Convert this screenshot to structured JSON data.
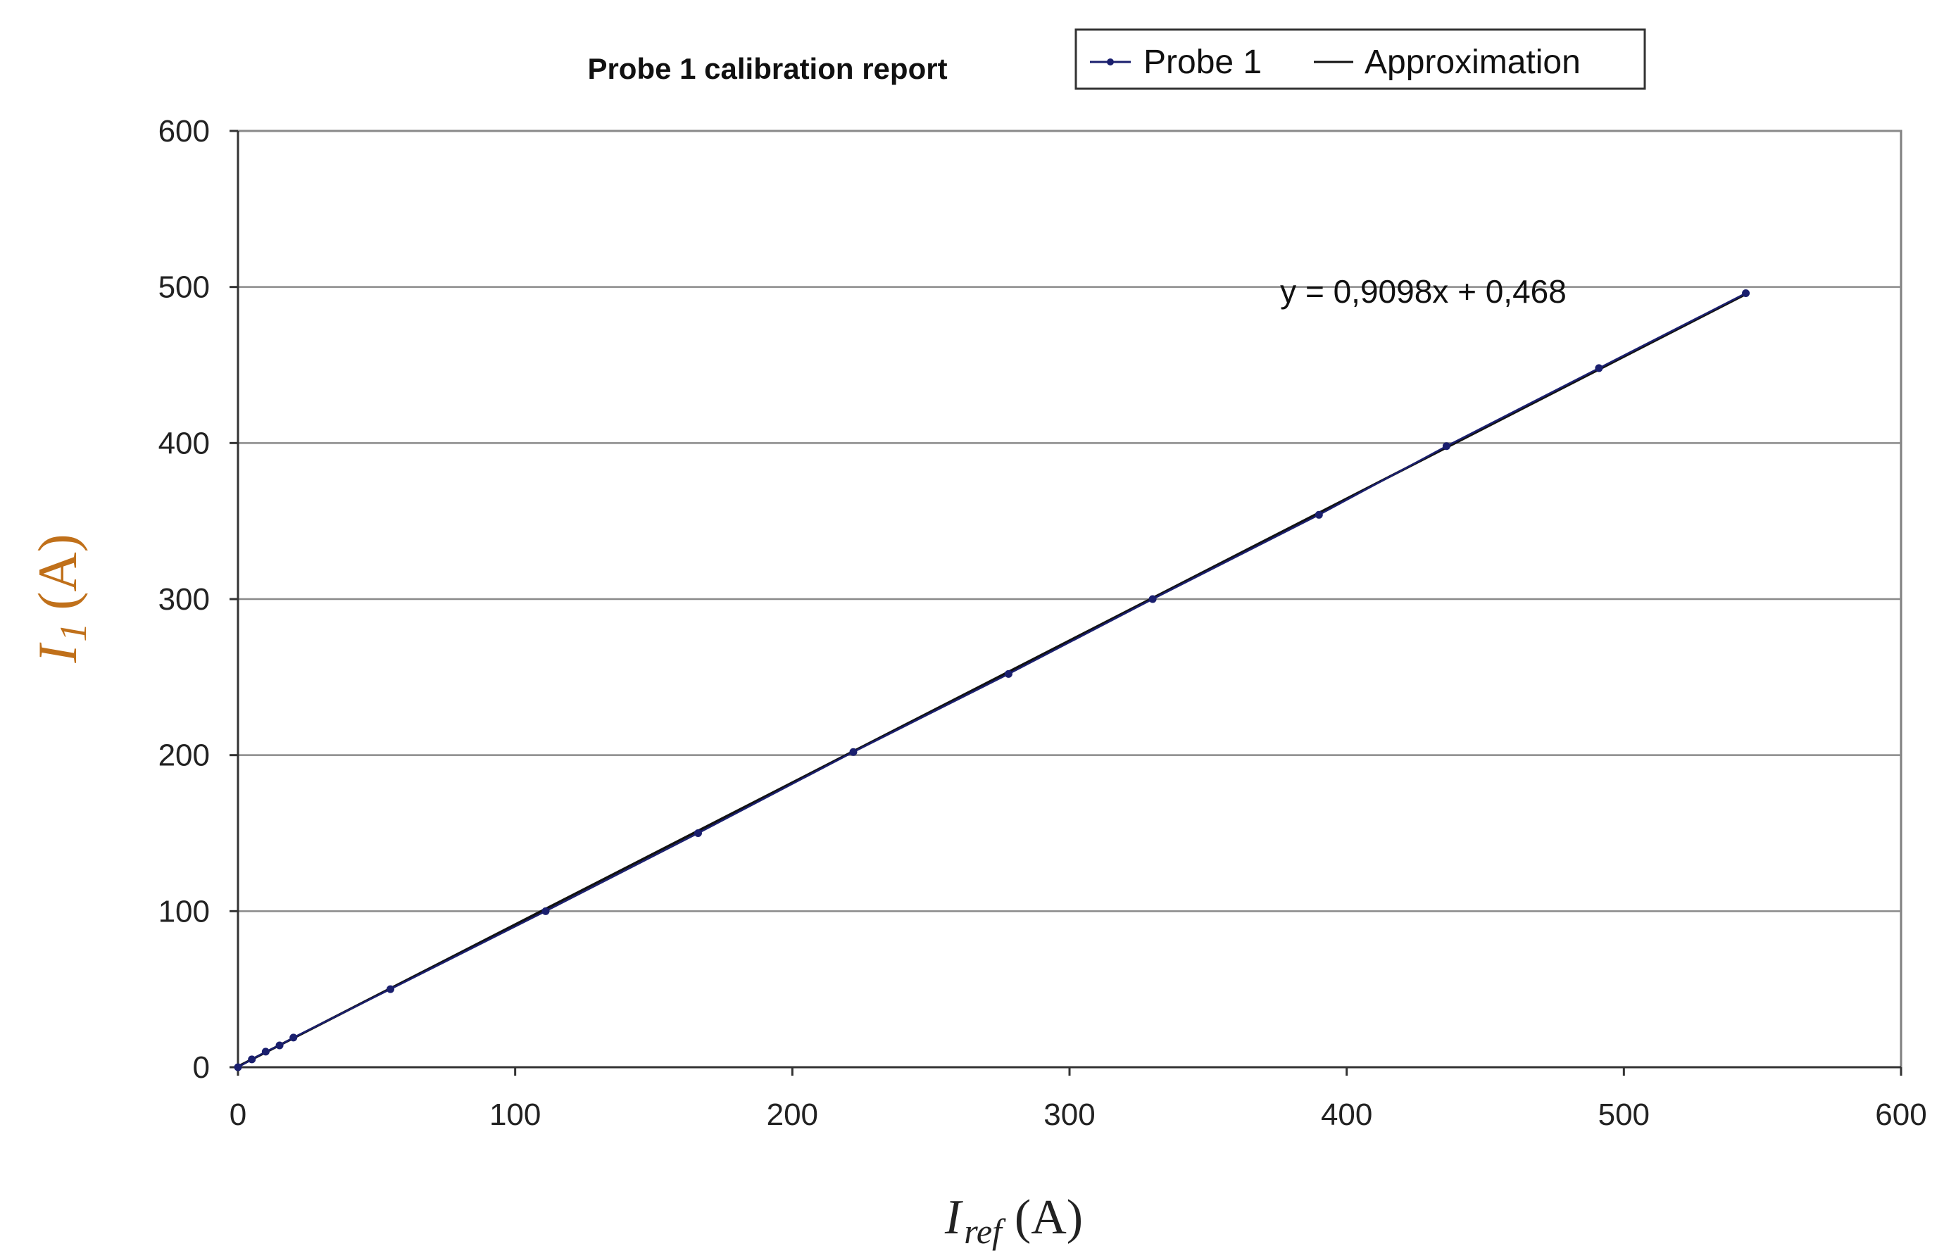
{
  "chart_data": {
    "type": "scatter",
    "title": "Probe 1 calibration report",
    "x_axis": {
      "label_main": "I",
      "label_sub": "ref",
      "label_unit": "(A)",
      "range": [
        0,
        600
      ],
      "ticks": [
        0,
        100,
        200,
        300,
        400,
        500,
        600
      ]
    },
    "y_axis": {
      "label_main": "I",
      "label_sub": "1",
      "label_unit": "(A)",
      "range": [
        0,
        600
      ],
      "ticks": [
        0,
        100,
        200,
        300,
        400,
        500,
        600
      ]
    },
    "grid": {
      "horizontal": true,
      "vertical": false
    },
    "legend": {
      "position": "top-right",
      "entries": [
        {
          "name": "Probe 1",
          "style": "line-marker"
        },
        {
          "name": "Approximation",
          "style": "line"
        }
      ]
    },
    "series": [
      {
        "name": "Probe 1",
        "color": "#1a1f6e",
        "points": [
          [
            0,
            0
          ],
          [
            5,
            5
          ],
          [
            10,
            10
          ],
          [
            15,
            14
          ],
          [
            20,
            19
          ],
          [
            55,
            50
          ],
          [
            111,
            100
          ],
          [
            166,
            150
          ],
          [
            222,
            202
          ],
          [
            278,
            252
          ],
          [
            330,
            300
          ],
          [
            390,
            354
          ],
          [
            436,
            398
          ],
          [
            491,
            448
          ],
          [
            544,
            496
          ]
        ]
      },
      {
        "name": "Approximation",
        "color": "#111111",
        "slope": 0.9098,
        "intercept": 0.468,
        "x_range": [
          0,
          544
        ]
      }
    ],
    "annotations": [
      {
        "text": "y = 0,9098x + 0,468",
        "x": 376,
        "y": 490
      }
    ]
  }
}
